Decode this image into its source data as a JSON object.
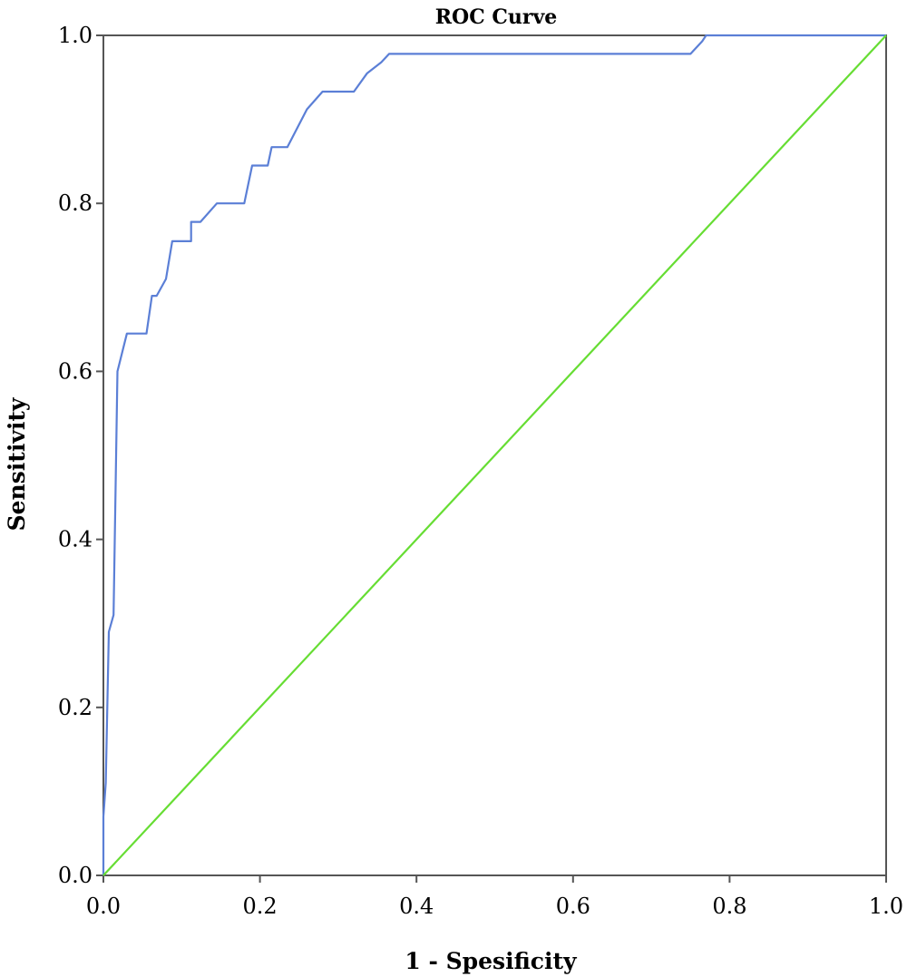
{
  "chart_data": {
    "type": "line",
    "title": "ROC Curve",
    "xlabel": "1 - Spesificity",
    "ylabel": "Sensitivity",
    "xlim": [
      0,
      1
    ],
    "ylim": [
      0,
      1
    ],
    "x_ticks": [
      "0.0",
      "0.2",
      "0.4",
      "0.6",
      "0.8",
      "1.0"
    ],
    "y_ticks": [
      "0.0",
      "0.2",
      "0.4",
      "0.6",
      "0.8",
      "1.0"
    ],
    "grid": false,
    "legend": "none",
    "series": [
      {
        "color": "#5b7fd6",
        "x": [
          0.0,
          0.0,
          0.003,
          0.007,
          0.007,
          0.013,
          0.013,
          0.018,
          0.018,
          0.03,
          0.055,
          0.062,
          0.068,
          0.08,
          0.088,
          0.112,
          0.112,
          0.124,
          0.145,
          0.18,
          0.19,
          0.21,
          0.215,
          0.235,
          0.26,
          0.28,
          0.32,
          0.337,
          0.355,
          0.365,
          0.75,
          0.765,
          0.77,
          1.0
        ],
        "y": [
          0.0,
          0.07,
          0.11,
          0.29,
          0.29,
          0.31,
          0.31,
          0.6,
          0.6,
          0.645,
          0.645,
          0.69,
          0.69,
          0.71,
          0.755,
          0.755,
          0.778,
          0.778,
          0.8,
          0.8,
          0.845,
          0.845,
          0.867,
          0.867,
          0.912,
          0.933,
          0.933,
          0.955,
          0.968,
          0.978,
          0.978,
          0.993,
          1.0,
          1.0
        ]
      },
      {
        "color": "#66dd33",
        "x": [
          0.0,
          1.0
        ],
        "y": [
          0.0,
          1.0
        ]
      }
    ]
  }
}
